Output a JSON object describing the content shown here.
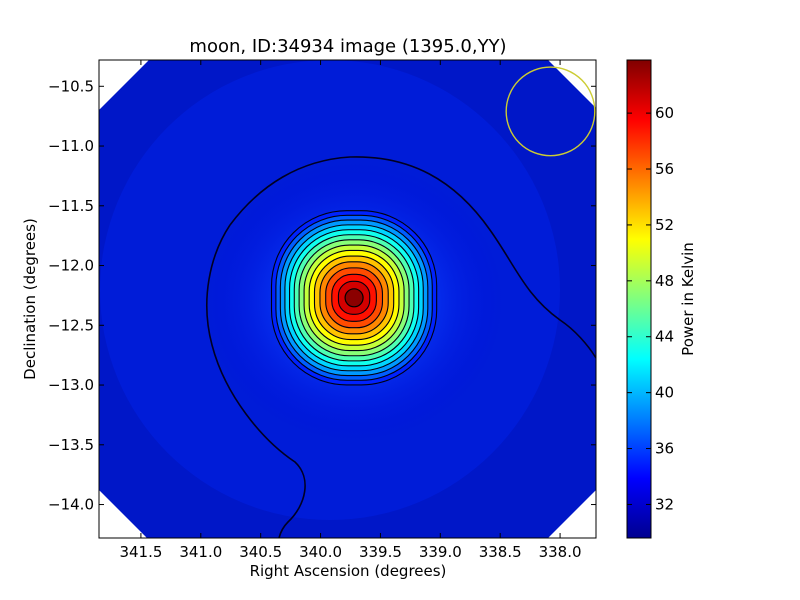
{
  "chart_data": {
    "type": "heatmap",
    "title": "moon, ID:34934 image (1395.0,YY)",
    "xlabel": "Right Ascension (degrees)",
    "ylabel": "Declination (degrees)",
    "xlim": [
      341.85,
      337.7
    ],
    "ylim": [
      -14.28,
      -10.28
    ],
    "x_ticks": [
      {
        "value": 341.5,
        "label": "341.5"
      },
      {
        "value": 341.0,
        "label": "341.0"
      },
      {
        "value": 340.5,
        "label": "340.5"
      },
      {
        "value": 340.0,
        "label": "340.0"
      },
      {
        "value": 339.5,
        "label": "339.5"
      },
      {
        "value": 339.0,
        "label": "339.0"
      },
      {
        "value": 338.5,
        "label": "338.5"
      },
      {
        "value": 338.0,
        "label": "338.0"
      }
    ],
    "y_ticks": [
      {
        "value": -10.5,
        "label": "−10.5"
      },
      {
        "value": -11.0,
        "label": "−11.0"
      },
      {
        "value": -11.5,
        "label": "−11.5"
      },
      {
        "value": -12.0,
        "label": "−12.0"
      },
      {
        "value": -12.5,
        "label": "−12.5"
      },
      {
        "value": -13.0,
        "label": "−13.0"
      },
      {
        "value": -13.5,
        "label": "−13.5"
      },
      {
        "value": -14.0,
        "label": "−14.0"
      }
    ],
    "colorbar": {
      "label": "Power in Kelvin",
      "colormap": "jet",
      "vmin": 29.6,
      "vmax": 63.8,
      "ticks": [
        {
          "value": 32,
          "label": "32"
        },
        {
          "value": 36,
          "label": "36"
        },
        {
          "value": 40,
          "label": "40"
        },
        {
          "value": 44,
          "label": "44"
        },
        {
          "value": 48,
          "label": "48"
        },
        {
          "value": 52,
          "label": "52"
        },
        {
          "value": 56,
          "label": "56"
        },
        {
          "value": 60,
          "label": "60"
        }
      ]
    },
    "source": {
      "ra": 339.72,
      "dec": -12.27,
      "peak": 63.5
    },
    "background_level": 31.5,
    "beam_circle": {
      "ra": 338.08,
      "dec": -10.71,
      "radius_deg": 0.37,
      "color": "#cccc33"
    },
    "grid": false
  }
}
